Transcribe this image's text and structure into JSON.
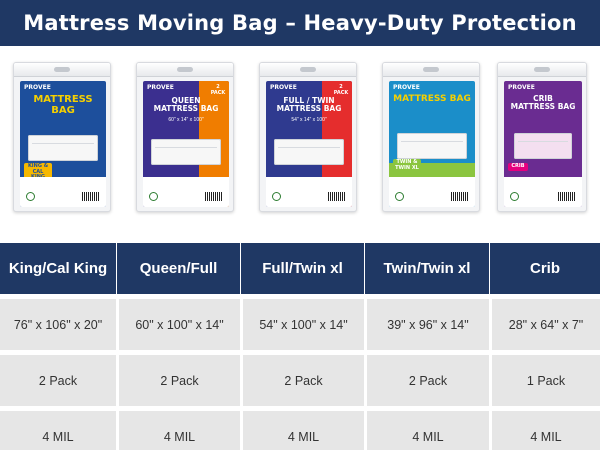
{
  "banner": {
    "title": "Mattress Moving Bag – Heavy-Duty Protection"
  },
  "colors": {
    "navy": "#1f3864",
    "row_gray": "#e6e6e6"
  },
  "products": [
    {
      "brand": "PROVEE",
      "title": "MATTRESS BAG",
      "badge": "KING & CAL KING",
      "size": "",
      "primary": "#1d4f9c",
      "accent": "#f6b800",
      "title_color": "#f6d000"
    },
    {
      "brand": "PROVEE",
      "title": "QUEEN\nMATTRESS BAG",
      "badge": "2 PACK",
      "size": "60\" x 14\" x 100\"",
      "primary": "#3b2f8f",
      "accent": "#f07d00",
      "title_color": "#ffffff"
    },
    {
      "brand": "PROVEE",
      "title": "FULL / TWIN\nMATTRESS BAG",
      "badge": "2 PACK",
      "size": "54\" x 14\" x 100\"",
      "primary": "#2f3a8f",
      "accent": "#e52d2d",
      "title_color": "#ffffff"
    },
    {
      "brand": "PROVEE",
      "title": "MATTRESS BAG",
      "badge": "TWIN & TWIN XL",
      "size": "",
      "primary": "#1b8ec9",
      "accent": "#8bc53f",
      "title_color": "#f6d000"
    },
    {
      "brand": "PROVEE",
      "title": "CRIB\nMATTRESS BAG",
      "badge": "CRIB",
      "size": "",
      "primary": "#6a2c91",
      "accent": "#e6007e",
      "title_color": "#ffffff"
    }
  ],
  "table": {
    "headers": [
      "King/Cal King",
      "Queen/Full",
      "Full/Twin xl",
      "Twin/Twin xl",
      "Crib"
    ],
    "rows": [
      [
        "76\" x 106\" x 20\"",
        "60\" x 100\" x 14\"",
        "54\" x 100\" x 14\"",
        "39\" x 96\" x 14\"",
        "28\" x 64\" x 7\""
      ],
      [
        "2 Pack",
        "2 Pack",
        "2 Pack",
        "2 Pack",
        "1 Pack"
      ],
      [
        "4 MIL",
        "4 MIL",
        "4 MIL",
        "4 MIL",
        "4 MIL"
      ]
    ]
  }
}
